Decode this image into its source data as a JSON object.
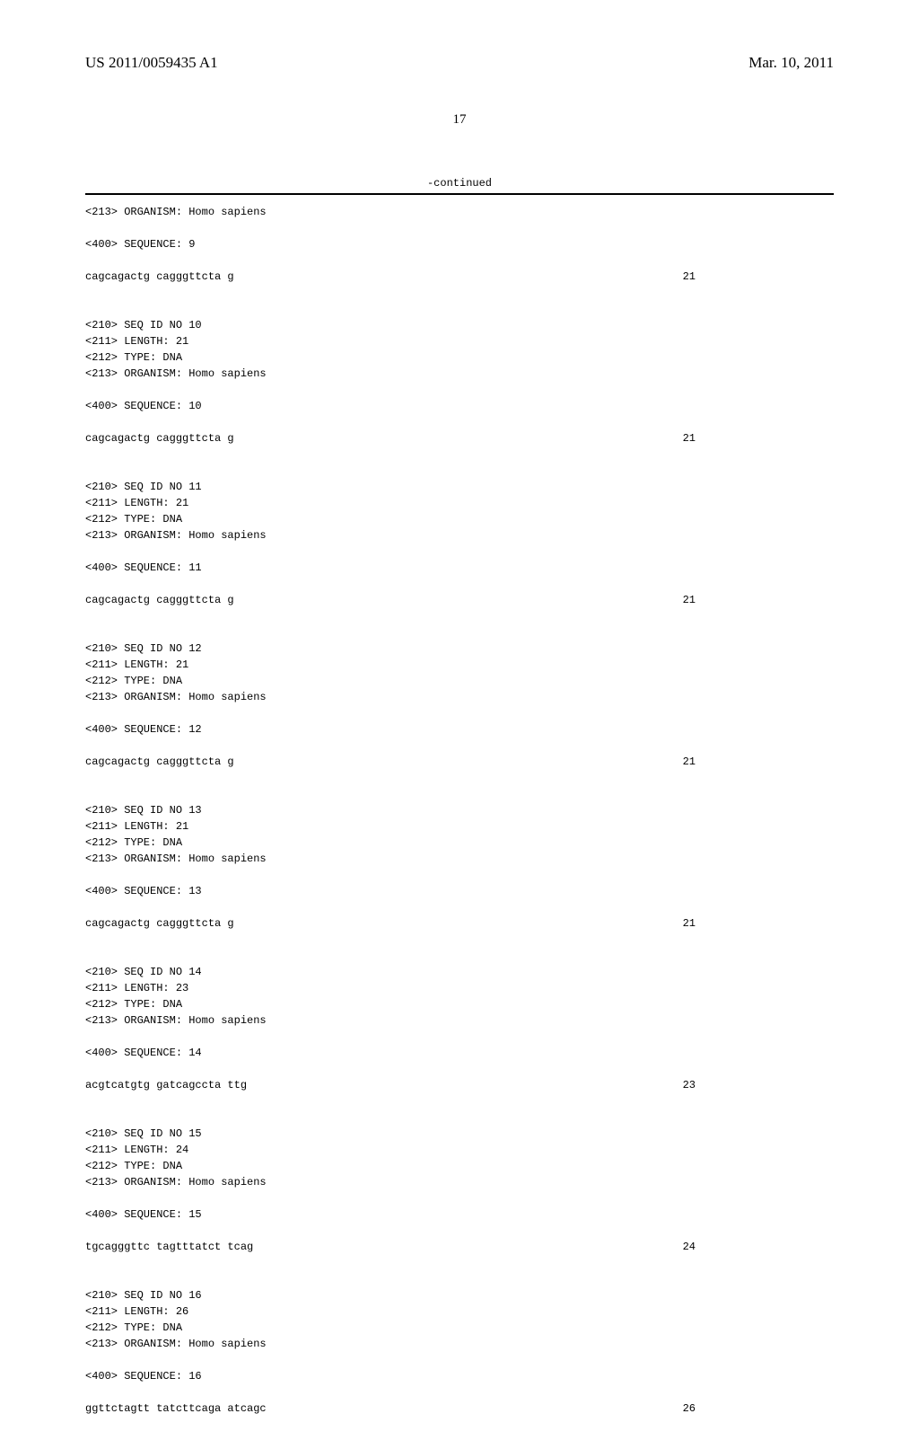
{
  "header": {
    "publication_number": "US 2011/0059435 A1",
    "publication_date": "Mar. 10, 2011"
  },
  "page_number": "17",
  "continued_label": "-continued",
  "sequences": [
    {
      "meta": [
        "<213> ORGANISM: Homo sapiens"
      ],
      "seq_label": "<400> SEQUENCE: 9",
      "sequence": "cagcagactg cagggttcta g",
      "length_num": "21"
    },
    {
      "meta": [
        "<210> SEQ ID NO 10",
        "<211> LENGTH: 21",
        "<212> TYPE: DNA",
        "<213> ORGANISM: Homo sapiens"
      ],
      "seq_label": "<400> SEQUENCE: 10",
      "sequence": "cagcagactg cagggttcta g",
      "length_num": "21"
    },
    {
      "meta": [
        "<210> SEQ ID NO 11",
        "<211> LENGTH: 21",
        "<212> TYPE: DNA",
        "<213> ORGANISM: Homo sapiens"
      ],
      "seq_label": "<400> SEQUENCE: 11",
      "sequence": "cagcagactg cagggttcta g",
      "length_num": "21"
    },
    {
      "meta": [
        "<210> SEQ ID NO 12",
        "<211> LENGTH: 21",
        "<212> TYPE: DNA",
        "<213> ORGANISM: Homo sapiens"
      ],
      "seq_label": "<400> SEQUENCE: 12",
      "sequence": "cagcagactg cagggttcta g",
      "length_num": "21"
    },
    {
      "meta": [
        "<210> SEQ ID NO 13",
        "<211> LENGTH: 21",
        "<212> TYPE: DNA",
        "<213> ORGANISM: Homo sapiens"
      ],
      "seq_label": "<400> SEQUENCE: 13",
      "sequence": "cagcagactg cagggttcta g",
      "length_num": "21"
    },
    {
      "meta": [
        "<210> SEQ ID NO 14",
        "<211> LENGTH: 23",
        "<212> TYPE: DNA",
        "<213> ORGANISM: Homo sapiens"
      ],
      "seq_label": "<400> SEQUENCE: 14",
      "sequence": "acgtcatgtg gatcagccta ttg",
      "length_num": "23"
    },
    {
      "meta": [
        "<210> SEQ ID NO 15",
        "<211> LENGTH: 24",
        "<212> TYPE: DNA",
        "<213> ORGANISM: Homo sapiens"
      ],
      "seq_label": "<400> SEQUENCE: 15",
      "sequence": "tgcagggttc tagtttatct tcag",
      "length_num": "24"
    },
    {
      "meta": [
        "<210> SEQ ID NO 16",
        "<211> LENGTH: 26",
        "<212> TYPE: DNA",
        "<213> ORGANISM: Homo sapiens"
      ],
      "seq_label": "<400> SEQUENCE: 16",
      "sequence": "ggttctagtt tatcttcaga atcagc",
      "length_num": "26"
    }
  ]
}
